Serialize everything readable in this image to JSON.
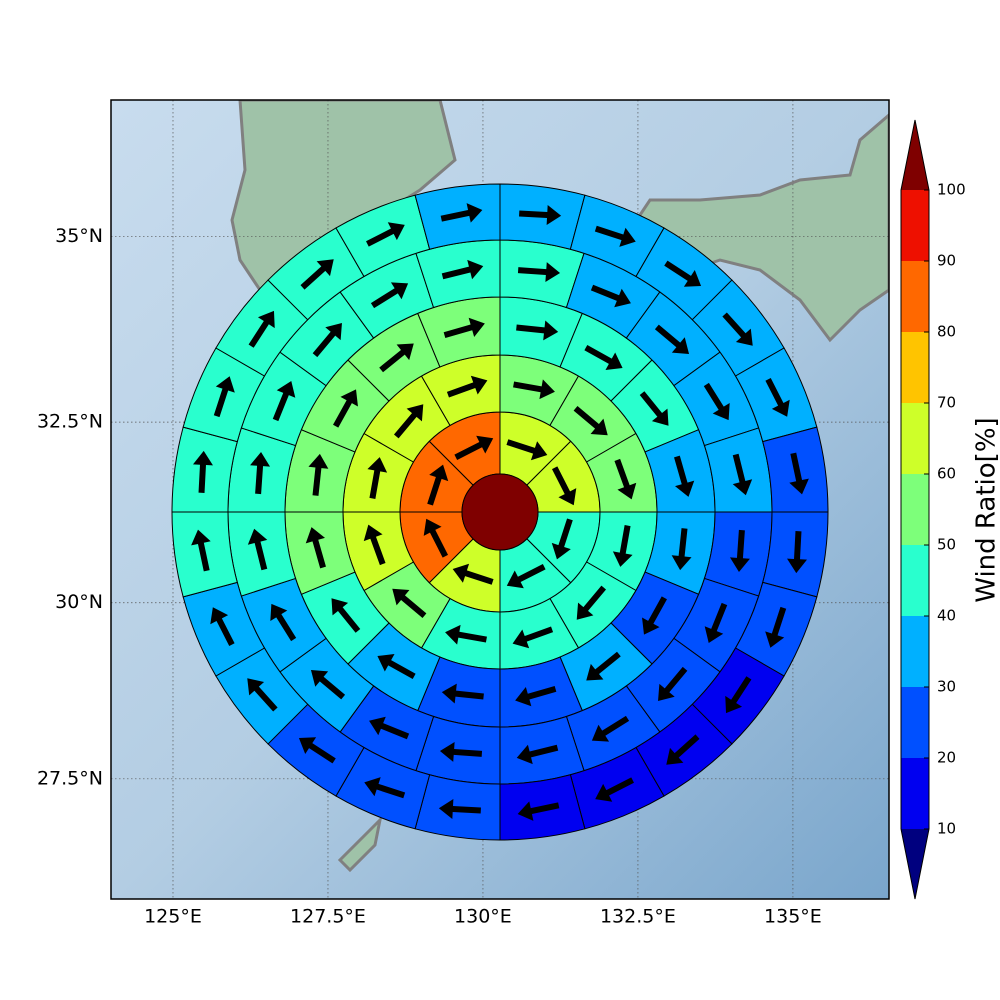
{
  "chart_data": {
    "type": "polar_wedge_map",
    "xlim": [
      124,
      136.55
    ],
    "ylim": [
      25.76,
      36.79
    ],
    "xticks": [
      {
        "value": 125,
        "label": "125°E"
      },
      {
        "value": 127.5,
        "label": "127.5°E"
      },
      {
        "value": 130,
        "label": "130°E"
      },
      {
        "value": 132.5,
        "label": "132.5°E"
      },
      {
        "value": 135,
        "label": "135°E"
      }
    ],
    "yticks": [
      {
        "value": 27.5,
        "label": "27.5°N"
      },
      {
        "value": 30,
        "label": "30°N"
      },
      {
        "value": 32.5,
        "label": "32.5°N"
      },
      {
        "value": 35,
        "label": "35°N"
      }
    ],
    "grid": true,
    "center_value": 105,
    "rings": [
      {
        "values": [
          65,
          65,
          45,
          45,
          65,
          85,
          85,
          85
        ],
        "directions": [
          108,
          153,
          198,
          243,
          288,
          333,
          18,
          63
        ]
      },
      {
        "values": [
          55,
          55,
          55,
          45,
          45,
          45,
          45,
          55,
          65,
          65,
          65,
          65
        ],
        "directions": [
          100,
          130,
          160,
          190,
          220,
          250,
          280,
          310,
          340,
          10,
          40,
          70
        ]
      },
      {
        "values": [
          45,
          45,
          45,
          35,
          35,
          25,
          35,
          25,
          25,
          35,
          45,
          55,
          55,
          55,
          55,
          55
        ],
        "directions": [
          96,
          119,
          141,
          164,
          186,
          209,
          231,
          254,
          276,
          299,
          321,
          344,
          6,
          29,
          51,
          74
        ]
      },
      {
        "values": [
          45,
          35,
          35,
          35,
          35,
          25,
          25,
          25,
          25,
          25,
          25,
          25,
          35,
          35,
          45,
          45,
          45,
          45,
          45,
          45
        ],
        "directions": [
          94,
          112,
          130,
          148,
          166,
          184,
          202,
          220,
          238,
          256,
          274,
          292,
          310,
          328,
          346,
          4,
          22,
          40,
          58,
          76
        ]
      },
      {
        "values": [
          35,
          35,
          35,
          35,
          35,
          25,
          25,
          25,
          15,
          15,
          15,
          15,
          25,
          25,
          25,
          35,
          35,
          45,
          45,
          45,
          45,
          45,
          45,
          35
        ],
        "directions": [
          93,
          108,
          123,
          138,
          153,
          168,
          183,
          198,
          213,
          228,
          243,
          258,
          273,
          288,
          303,
          318,
          333,
          348,
          3,
          18,
          33,
          48,
          63,
          78
        ]
      }
    ],
    "colorbar": {
      "label": "Wind Ratio[%]",
      "levels": [
        10,
        20,
        30,
        40,
        50,
        60,
        70,
        80,
        90,
        100
      ],
      "colors": [
        "#00007f",
        "#0000f0",
        "#0050ff",
        "#00b0ff",
        "#29ffce",
        "#7dff7a",
        "#ceff29",
        "#ffc400",
        "#ff6800",
        "#ee1000",
        "#7f0000"
      ]
    }
  }
}
